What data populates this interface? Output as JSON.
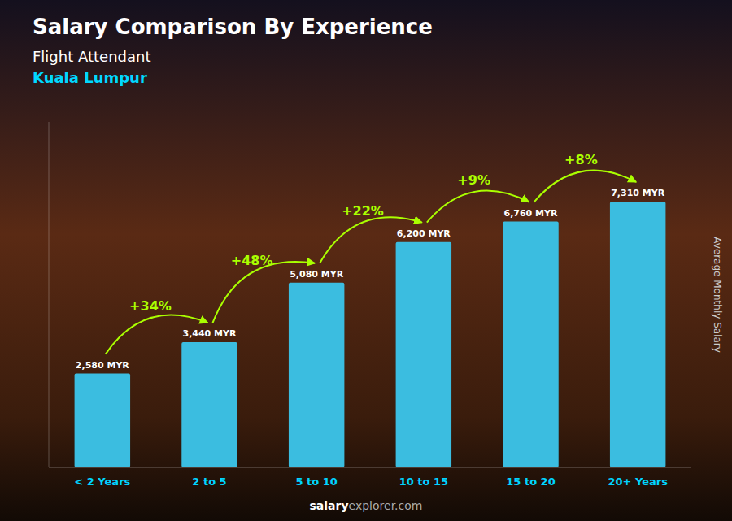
{
  "chart_data": {
    "type": "bar",
    "title": "Salary Comparison By Experience",
    "subtitle": [
      "Flight Attendant",
      "Kuala Lumpur"
    ],
    "y_label": "Average Monthly Salary",
    "categories": [
      "< 2 Years",
      "2 to 5",
      "5 to 10",
      "10 to 15",
      "15 to 20",
      "20+ Years"
    ],
    "values": [
      2580,
      3440,
      5080,
      6200,
      6760,
      7310
    ],
    "value_labels": [
      "2,580 MYR",
      "3,440 MYR",
      "5,080 MYR",
      "6,200 MYR",
      "6,760 MYR",
      "7,310 MYR"
    ],
    "data_labels": true,
    "color": "#3bbde0",
    "annotations": [
      {
        "label": "+34%",
        "value": 34,
        "color": "#aaff00"
      },
      {
        "label": "+48%",
        "value": 48,
        "color": "#aaff00"
      },
      {
        "label": "+22%",
        "value": 22,
        "color": "#aaff00"
      },
      {
        "label": "+9%",
        "value": 9,
        "color": "#aaff00"
      },
      {
        "label": "+8%",
        "value": 8,
        "color": "#aaff00"
      }
    ],
    "footer": [
      "salary",
      "explorer.com"
    ],
    "ylim": [
      0,
      9500
    ],
    "tick_labels": "x",
    "grid": false
  }
}
